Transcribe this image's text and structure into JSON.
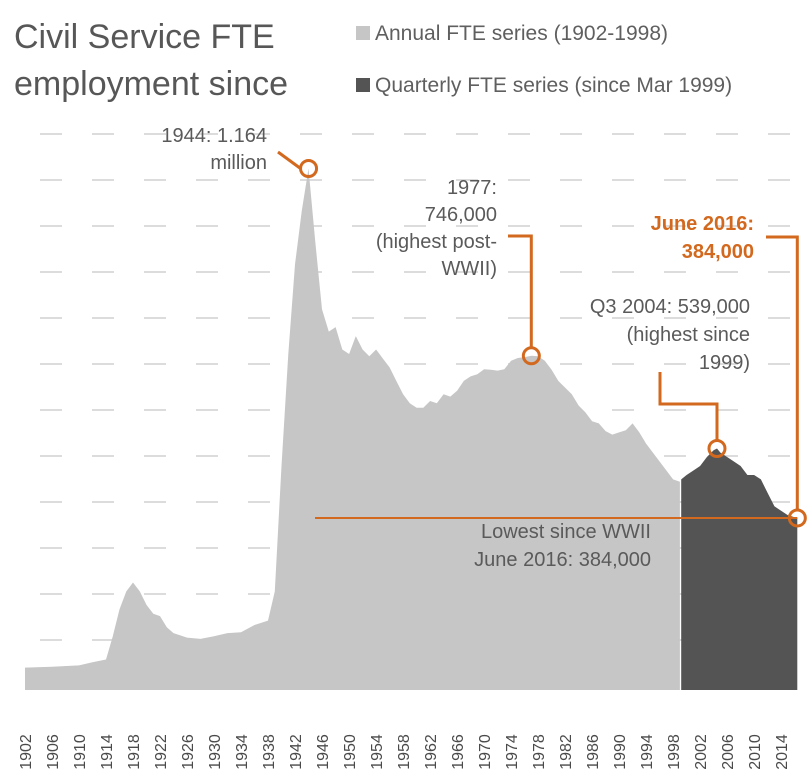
{
  "title_line1": "Civil Service FTE",
  "title_line2": "employment since",
  "colors": {
    "annual": "#c6c6c6",
    "quarterly": "#545454",
    "accent": "#d2691e",
    "grid": "#dcdcdc"
  },
  "chart_data": {
    "type": "area",
    "title": "Civil Service FTE employment since",
    "xlabel": "",
    "ylabel": "",
    "xlim": [
      1902,
      2016.5
    ],
    "ylim": [
      0,
      1.25
    ],
    "y_unit": "million FTE",
    "grid": true,
    "legend": "top-right",
    "x_tick_labels": [
      "1902",
      "1906",
      "1910",
      "1914",
      "1918",
      "1922",
      "1926",
      "1930",
      "1934",
      "1938",
      "1942",
      "1946",
      "1950",
      "1954",
      "1958",
      "1962",
      "1966",
      "1970",
      "1974",
      "1978",
      "1982",
      "1986",
      "1990",
      "1994",
      "1998",
      "2002",
      "2006",
      "2010",
      "2014"
    ],
    "series": [
      {
        "name": "Annual FTE series (1902-1998)",
        "color": "#c6c6c6",
        "x": [
          1902,
          1906,
          1910,
          1912,
          1914,
          1915,
          1916,
          1917,
          1918,
          1919,
          1920,
          1921,
          1922,
          1923,
          1924,
          1926,
          1928,
          1930,
          1932,
          1934,
          1936,
          1938,
          1939,
          1940,
          1941,
          1942,
          1943,
          1944,
          1945,
          1946,
          1947,
          1948,
          1949,
          1950,
          1951,
          1952,
          1953,
          1954,
          1955,
          1956,
          1957,
          1958,
          1959,
          1960,
          1961,
          1962,
          1963,
          1964,
          1965,
          1966,
          1967,
          1968,
          1969,
          1970,
          1971,
          1972,
          1973,
          1974,
          1975,
          1976,
          1977,
          1978,
          1979,
          1980,
          1981,
          1982,
          1983,
          1984,
          1985,
          1986,
          1987,
          1988,
          1989,
          1990,
          1991,
          1992,
          1993,
          1994,
          1995,
          1996,
          1997,
          1998,
          1999
        ],
        "values": [
          0.05,
          0.052,
          0.055,
          0.062,
          0.068,
          0.12,
          0.18,
          0.22,
          0.24,
          0.22,
          0.19,
          0.17,
          0.165,
          0.14,
          0.127,
          0.117,
          0.114,
          0.12,
          0.127,
          0.129,
          0.145,
          0.155,
          0.22,
          0.5,
          0.75,
          0.95,
          1.07,
          1.164,
          1.0,
          0.85,
          0.8,
          0.81,
          0.76,
          0.75,
          0.79,
          0.76,
          0.745,
          0.76,
          0.74,
          0.72,
          0.69,
          0.66,
          0.64,
          0.63,
          0.63,
          0.645,
          0.64,
          0.66,
          0.655,
          0.668,
          0.69,
          0.7,
          0.705,
          0.716,
          0.715,
          0.713,
          0.716,
          0.735,
          0.741,
          0.743,
          0.746,
          0.745,
          0.735,
          0.715,
          0.69,
          0.675,
          0.66,
          0.635,
          0.62,
          0.6,
          0.595,
          0.578,
          0.57,
          0.575,
          0.58,
          0.595,
          0.575,
          0.55,
          0.53,
          0.51,
          0.49,
          0.47,
          0.465
        ]
      },
      {
        "name": "Quarterly FTE series (since Mar 1999)",
        "color": "#545454",
        "x": [
          1999.2,
          2000,
          2001,
          2002,
          2003,
          2004,
          2004.5,
          2005,
          2006,
          2007,
          2008,
          2009,
          2010,
          2011,
          2012,
          2013,
          2014,
          2015,
          2016.4
        ],
        "values": [
          0.47,
          0.48,
          0.49,
          0.5,
          0.52,
          0.535,
          0.539,
          0.53,
          0.52,
          0.51,
          0.5,
          0.48,
          0.48,
          0.47,
          0.44,
          0.41,
          0.4,
          0.39,
          0.384
        ]
      }
    ],
    "annotations": [
      {
        "id": "peak_1944",
        "x": 1944,
        "y": 1.164,
        "lines": [
          "1944: 1.164",
          "million"
        ]
      },
      {
        "id": "peak_1977",
        "x": 1977,
        "y": 0.746,
        "lines": [
          "1977:",
          "746,000",
          "(highest post-",
          "WWII)"
        ]
      },
      {
        "id": "peak_2004",
        "x": 2004.5,
        "y": 0.539,
        "lines": [
          "Q3 2004: 539,000",
          "(highest since",
          "1999)"
        ]
      },
      {
        "id": "june_2016",
        "x": 2016.4,
        "y": 0.384,
        "lines": [
          "June 2016:",
          "384,000"
        ]
      },
      {
        "id": "lowest_line",
        "x_from": 1944,
        "x_to": 2016.4,
        "y": 0.384,
        "lines": [
          "Lowest since WWII",
          "June 2016: 384,000"
        ]
      }
    ]
  }
}
